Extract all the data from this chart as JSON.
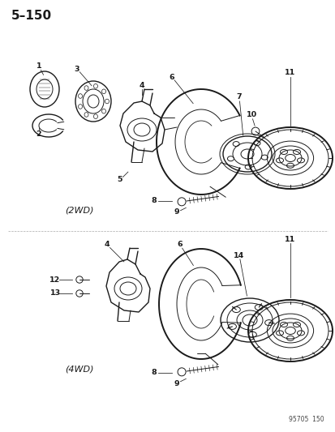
{
  "title": "5–150",
  "footer": "95705  150",
  "background_color": "#ffffff",
  "line_color": "#1a1a1a",
  "label_2wd": "(2WD)",
  "label_4wd": "(4WD)",
  "figsize": [
    4.14,
    5.33
  ],
  "dpi": 100
}
